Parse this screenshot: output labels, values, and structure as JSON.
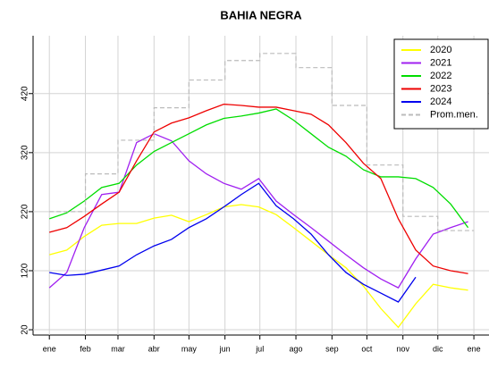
{
  "chart_data": {
    "type": "line",
    "title": "BAHIA NEGRA",
    "x": [
      1,
      16,
      31,
      46,
      61,
      76,
      91,
      106,
      121,
      136,
      151,
      166,
      181,
      196,
      211,
      226,
      241,
      256,
      271,
      286,
      301,
      316,
      331,
      346,
      361
    ],
    "xlim": [
      -13,
      379
    ],
    "xticks": [
      {
        "value": 1,
        "label": "ene"
      },
      {
        "value": 32,
        "label": "feb"
      },
      {
        "value": 60,
        "label": "mar"
      },
      {
        "value": 91,
        "label": "abr"
      },
      {
        "value": 121,
        "label": "may"
      },
      {
        "value": 152,
        "label": "jun"
      },
      {
        "value": 182,
        "label": "jul"
      },
      {
        "value": 213,
        "label": "ago"
      },
      {
        "value": 244,
        "label": "sep"
      },
      {
        "value": 274,
        "label": "oct"
      },
      {
        "value": 305,
        "label": "nov"
      },
      {
        "value": 335,
        "label": "dic"
      },
      {
        "value": 366,
        "label": "ene"
      }
    ],
    "ylim": [
      11,
      518
    ],
    "yticks": [
      20,
      120,
      220,
      320,
      420
    ],
    "grid": true,
    "legend": "top-right",
    "series": [
      {
        "name": "2020",
        "color": "#ffff00",
        "values": [
          147,
          155,
          178,
          197,
          200,
          200,
          209,
          214,
          203,
          215,
          228,
          232,
          228,
          215,
          193,
          170,
          147,
          125,
          94,
          56,
          24,
          64,
          97,
          91,
          87
        ]
      },
      {
        "name": "2021",
        "color": "#a020f0",
        "values": [
          91,
          117,
          193,
          249,
          253,
          337,
          352,
          340,
          306,
          284,
          268,
          258,
          276,
          238,
          215,
          193,
          170,
          147,
          125,
          106,
          91,
          140,
          182,
          193,
          203
        ]
      },
      {
        "name": "2022",
        "color": "#00dd00",
        "values": [
          208,
          218,
          238,
          261,
          268,
          299,
          322,
          337,
          352,
          367,
          378,
          382,
          387,
          394,
          375,
          352,
          329,
          314,
          291,
          279,
          279,
          276,
          261,
          233,
          193
        ]
      },
      {
        "name": "2023",
        "color": "#ee0000",
        "values": [
          185,
          193,
          212,
          233,
          253,
          306,
          355,
          370,
          379,
          391,
          402,
          400,
          397,
          397,
          391,
          385,
          367,
          337,
          302,
          276,
          208,
          155,
          128,
          120,
          115
        ]
      },
      {
        "name": "2024",
        "color": "#0000ee",
        "values": [
          117,
          112,
          114,
          121,
          128,
          147,
          162,
          173,
          193,
          208,
          228,
          249,
          268,
          230,
          208,
          182,
          147,
          117,
          97,
          82,
          67,
          109,
          null,
          null,
          null
        ]
      },
      {
        "name": "Prom.men.",
        "color": "#bbbbbb",
        "dashed": true,
        "step": true,
        "x": [
          1,
          32,
          60,
          91,
          121,
          152,
          182,
          213,
          244,
          274,
          305,
          335
        ],
        "values": [
          220,
          284,
          341,
          396,
          443,
          476,
          488,
          464,
          400,
          299,
          212,
          188
        ]
      }
    ]
  }
}
